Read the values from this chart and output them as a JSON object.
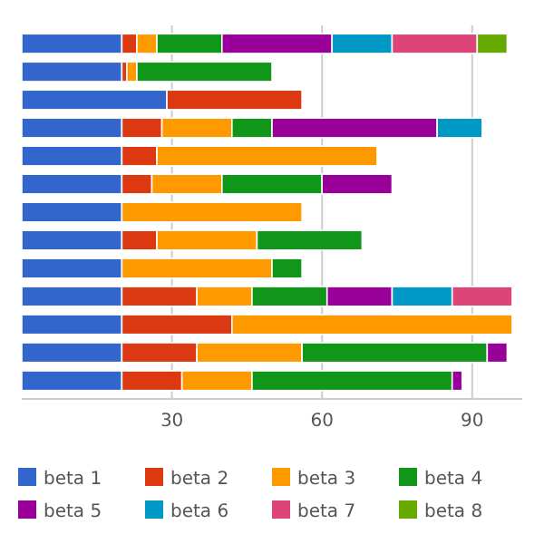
{
  "chart_data": {
    "type": "bar",
    "orientation": "horizontal",
    "stacked": true,
    "legend": "bottom",
    "grid": "x",
    "categories": [
      null,
      null,
      null,
      null,
      null,
      null,
      null,
      null,
      null,
      null,
      null,
      null,
      null
    ],
    "xlim": [
      0,
      100
    ],
    "xticks": [
      30,
      60,
      90
    ],
    "series": [
      {
        "name": "beta 1",
        "color": "#3366cc",
        "values": [
          20,
          20,
          29,
          20,
          20,
          20,
          20,
          20,
          20,
          20,
          20,
          20,
          20
        ]
      },
      {
        "name": "beta 2",
        "color": "#dc3912",
        "values": [
          3,
          1,
          27,
          8,
          7,
          6,
          null,
          7,
          null,
          15,
          22,
          15,
          12
        ]
      },
      {
        "name": "beta 3",
        "color": "#ff9900",
        "values": [
          4,
          2,
          null,
          14,
          44,
          14,
          36,
          20,
          30,
          11,
          56,
          21,
          14
        ]
      },
      {
        "name": "beta 4",
        "color": "#109618",
        "values": [
          13,
          27,
          null,
          8,
          null,
          20,
          null,
          21,
          6,
          15,
          null,
          37,
          40
        ]
      },
      {
        "name": "beta 5",
        "color": "#990099",
        "values": [
          22,
          null,
          null,
          33,
          null,
          14,
          null,
          null,
          null,
          13,
          null,
          4,
          2
        ]
      },
      {
        "name": "beta 6",
        "color": "#0099c6",
        "values": [
          12,
          null,
          null,
          9,
          null,
          null,
          null,
          null,
          null,
          12,
          null,
          null,
          null
        ]
      },
      {
        "name": "beta 7",
        "color": "#dd4477",
        "values": [
          17,
          null,
          null,
          null,
          null,
          null,
          null,
          null,
          null,
          12,
          null,
          null,
          null
        ]
      },
      {
        "name": "beta 8",
        "color": "#66aa00",
        "values": [
          6,
          null,
          null,
          null,
          null,
          null,
          null,
          null,
          null,
          null,
          null,
          null,
          null
        ]
      }
    ]
  }
}
